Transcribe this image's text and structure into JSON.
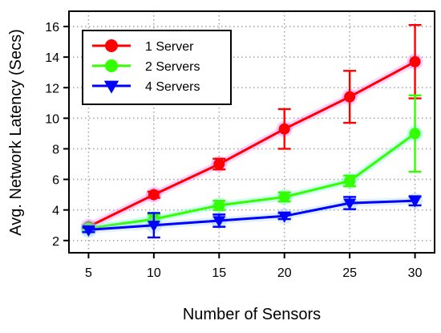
{
  "chart_data": {
    "type": "line",
    "title": "",
    "xlabel": "Number of Sensors",
    "ylabel": "Avg. Network Latency (Secs)",
    "x": [
      5,
      10,
      15,
      20,
      25,
      30
    ],
    "xlim": [
      3.5,
      31.5
    ],
    "ylim": [
      1.2,
      17
    ],
    "xticks": [
      "5",
      "10",
      "15",
      "20",
      "25",
      "30"
    ],
    "yticks": [
      "2",
      "4",
      "6",
      "8",
      "10",
      "12",
      "14",
      "16"
    ],
    "grid": true,
    "legend_position": "top-left",
    "series": [
      {
        "name": "1 Server",
        "color": "#ff0000",
        "highlight": "#ff66ff",
        "marker": "circle",
        "values": [
          2.9,
          5.0,
          7.0,
          9.3,
          11.4,
          13.7
        ],
        "err": [
          0.1,
          0.2,
          0.35,
          1.3,
          1.7,
          2.4
        ]
      },
      {
        "name": "2 Servers",
        "color": "#33ff00",
        "highlight": "#66ffcc",
        "marker": "circle",
        "values": [
          2.8,
          3.4,
          4.3,
          4.85,
          5.9,
          9.0
        ],
        "err": [
          0.15,
          0.3,
          0.3,
          0.3,
          0.35,
          2.5
        ]
      },
      {
        "name": "4 Servers",
        "color": "#0000ff",
        "highlight": "#99ccff",
        "marker": "triangle-down",
        "values": [
          2.7,
          3.0,
          3.3,
          3.6,
          4.45,
          4.6
        ],
        "err": [
          0.15,
          0.8,
          0.4,
          0.2,
          0.4,
          0.3
        ]
      }
    ]
  }
}
